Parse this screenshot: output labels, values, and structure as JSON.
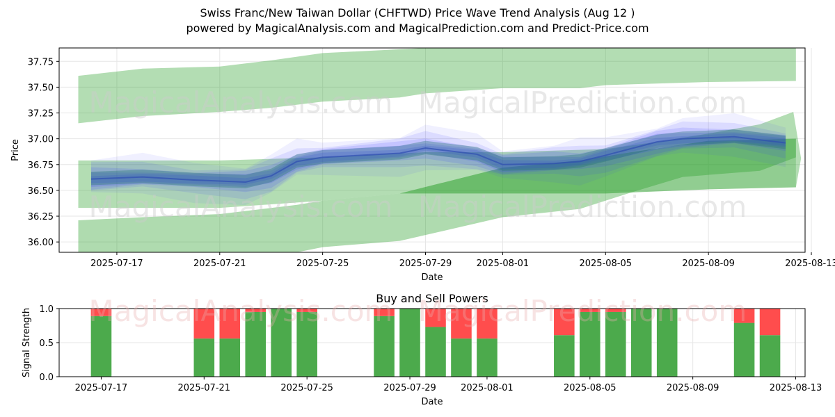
{
  "title": "Swiss Franc/New Taiwan Dollar (CHFTWD) Price Wave Trend Analysis (Aug 12 )",
  "subtitle": "powered by MagicalAnalysis.com and MagicalPrediction.com and Predict-Price.com",
  "watermarks": [
    "MagicalAnalysis.com",
    "MagicalPrediction.com"
  ],
  "colors": {
    "band_green": "#2ca02c",
    "wave_blue": "#3a3aff",
    "wave_teal": "#1f6f6f",
    "buy": "#4caa4c",
    "sell": "#ff4d4d"
  },
  "chart_data": [
    {
      "type": "area",
      "title": "",
      "xlabel": "Date",
      "ylabel": "Price",
      "ylim": [
        35.9,
        37.88
      ],
      "xlim": [
        "2025-07-15",
        "2025-08-13"
      ],
      "x_ticks": [
        "2025-07-17",
        "2025-07-21",
        "2025-07-25",
        "2025-07-29",
        "2025-08-01",
        "2025-08-05",
        "2025-08-09",
        "2025-08-13"
      ],
      "y_ticks": [
        "36.00",
        "36.25",
        "36.50",
        "36.75",
        "37.00",
        "37.25",
        "37.50",
        "37.75"
      ],
      "grid": true,
      "bands": [
        {
          "upper": [
            [
              "2025-07-15.5",
              37.61
            ],
            [
              "2025-07-18",
              37.68
            ],
            [
              "2025-07-21",
              37.7
            ],
            [
              "2025-07-23",
              37.76
            ],
            [
              "2025-07-25",
              37.83
            ],
            [
              "2025-07-29",
              37.88
            ],
            [
              "2025-08-01",
              37.88
            ],
            [
              "2025-08-05",
              37.88
            ],
            [
              "2025-08-09",
              37.88
            ],
            [
              "2025-08-12.4",
              37.88
            ]
          ],
          "lower": [
            [
              "2025-07-15.5",
              37.15
            ],
            [
              "2025-07-18",
              37.22
            ],
            [
              "2025-07-21",
              37.26
            ],
            [
              "2025-07-23",
              37.3
            ],
            [
              "2025-07-25",
              37.36
            ],
            [
              "2025-07-28",
              37.4
            ],
            [
              "2025-07-29",
              37.44
            ],
            [
              "2025-08-01",
              37.49
            ],
            [
              "2025-08-04",
              37.49
            ],
            [
              "2025-08-05",
              37.52
            ],
            [
              "2025-08-09",
              37.55
            ],
            [
              "2025-08-12.4",
              37.56
            ]
          ]
        },
        {
          "upper": [
            [
              "2025-07-15.5",
              36.79
            ],
            [
              "2025-07-18",
              36.79
            ],
            [
              "2025-07-21",
              36.79
            ],
            [
              "2025-07-25",
              36.82
            ],
            [
              "2025-07-29",
              36.87
            ],
            [
              "2025-08-01",
              36.87
            ],
            [
              "2025-08-05",
              36.9
            ],
            [
              "2025-08-07",
              36.97
            ],
            [
              "2025-08-09",
              37.05
            ],
            [
              "2025-08-11",
              37.14
            ],
            [
              "2025-08-12.3",
              37.26
            ],
            [
              "2025-08-12.6",
              36.81
            ]
          ],
          "lower": [
            [
              "2025-07-15.5",
              36.33
            ],
            [
              "2025-07-18",
              36.33
            ],
            [
              "2025-07-21",
              36.33
            ],
            [
              "2025-07-25",
              36.4
            ],
            [
              "2025-07-28",
              36.47
            ],
            [
              "2025-08-01",
              36.47
            ],
            [
              "2025-08-05",
              36.47
            ],
            [
              "2025-08-09",
              36.51
            ],
            [
              "2025-08-12.4",
              36.53
            ]
          ]
        },
        {
          "upper": [
            [
              "2025-07-15.5",
              36.21
            ],
            [
              "2025-07-18",
              36.24
            ],
            [
              "2025-07-21",
              36.27
            ],
            [
              "2025-07-24",
              36.36
            ],
            [
              "2025-07-25",
              36.4
            ],
            [
              "2025-07-28",
              36.47
            ],
            [
              "2025-08-01",
              36.72
            ],
            [
              "2025-08-04",
              36.79
            ],
            [
              "2025-08-06",
              36.87
            ],
            [
              "2025-08-09",
              36.98
            ],
            [
              "2025-08-12.4",
              37.0
            ]
          ],
          "lower": [
            [
              "2025-07-15.5",
              35.9
            ],
            [
              "2025-07-24",
              35.9
            ],
            [
              "2025-07-25",
              35.95
            ],
            [
              "2025-07-28",
              36.01
            ],
            [
              "2025-08-01",
              36.24
            ],
            [
              "2025-08-04",
              36.32
            ],
            [
              "2025-08-06",
              36.48
            ],
            [
              "2025-08-08",
              36.63
            ],
            [
              "2025-08-11",
              36.69
            ],
            [
              "2025-08-12.4",
              36.82
            ]
          ]
        }
      ],
      "wave_center": [
        [
          "2025-07-16",
          36.61
        ],
        [
          "2025-07-18",
          36.63
        ],
        [
          "2025-07-20",
          36.6
        ],
        [
          "2025-07-22",
          36.58
        ],
        [
          "2025-07-23",
          36.64
        ],
        [
          "2025-07-24",
          36.78
        ],
        [
          "2025-07-25",
          36.82
        ],
        [
          "2025-07-28",
          36.86
        ],
        [
          "2025-07-29",
          36.91
        ],
        [
          "2025-07-31",
          36.85
        ],
        [
          "2025-08-01",
          36.75
        ],
        [
          "2025-08-03",
          36.76
        ],
        [
          "2025-08-04",
          36.78
        ],
        [
          "2025-08-05",
          36.84
        ],
        [
          "2025-08-07",
          36.97
        ],
        [
          "2025-08-08",
          37.0
        ],
        [
          "2025-08-10",
          37.02
        ],
        [
          "2025-08-12",
          36.96
        ]
      ]
    },
    {
      "type": "bar",
      "title": "Buy and Sell Powers",
      "xlabel": "Date",
      "ylabel": "Signal Strength",
      "ylim": [
        0,
        1
      ],
      "xlim": [
        "2025-07-15.5",
        "2025-08-13.5"
      ],
      "x_ticks": [
        "2025-07-17",
        "2025-07-21",
        "2025-07-25",
        "2025-07-29",
        "2025-08-01",
        "2025-08-05",
        "2025-08-09",
        "2025-08-13"
      ],
      "y_ticks": [
        "0.0",
        "0.5",
        "1.0"
      ],
      "grid": true,
      "series": [
        {
          "name": "Buy",
          "values": [
            [
              "2025-07-17",
              0.89
            ],
            [
              "2025-07-21",
              0.56
            ],
            [
              "2025-07-22",
              0.56
            ],
            [
              "2025-07-23",
              0.95
            ],
            [
              "2025-07-24",
              1.0
            ],
            [
              "2025-07-25",
              0.95
            ],
            [
              "2025-07-28",
              0.89
            ],
            [
              "2025-07-29",
              1.0
            ],
            [
              "2025-07-30",
              0.73
            ],
            [
              "2025-07-31",
              0.56
            ],
            [
              "2025-08-01",
              0.56
            ],
            [
              "2025-08-04",
              0.61
            ],
            [
              "2025-08-05",
              0.95
            ],
            [
              "2025-08-06",
              0.95
            ],
            [
              "2025-08-07",
              1.0
            ],
            [
              "2025-08-08",
              1.0
            ],
            [
              "2025-08-11",
              0.79
            ],
            [
              "2025-08-12",
              0.61
            ]
          ]
        },
        {
          "name": "Sell",
          "values": [
            [
              "2025-07-17",
              0.11
            ],
            [
              "2025-07-21",
              0.44
            ],
            [
              "2025-07-22",
              0.44
            ],
            [
              "2025-07-23",
              0.05
            ],
            [
              "2025-07-24",
              0.0
            ],
            [
              "2025-07-25",
              0.05
            ],
            [
              "2025-07-28",
              0.11
            ],
            [
              "2025-07-29",
              0.0
            ],
            [
              "2025-07-30",
              0.27
            ],
            [
              "2025-07-31",
              0.44
            ],
            [
              "2025-08-01",
              0.44
            ],
            [
              "2025-08-04",
              0.39
            ],
            [
              "2025-08-05",
              0.05
            ],
            [
              "2025-08-06",
              0.05
            ],
            [
              "2025-08-07",
              0.0
            ],
            [
              "2025-08-08",
              0.0
            ],
            [
              "2025-08-11",
              0.21
            ],
            [
              "2025-08-12",
              0.39
            ]
          ]
        }
      ]
    }
  ]
}
